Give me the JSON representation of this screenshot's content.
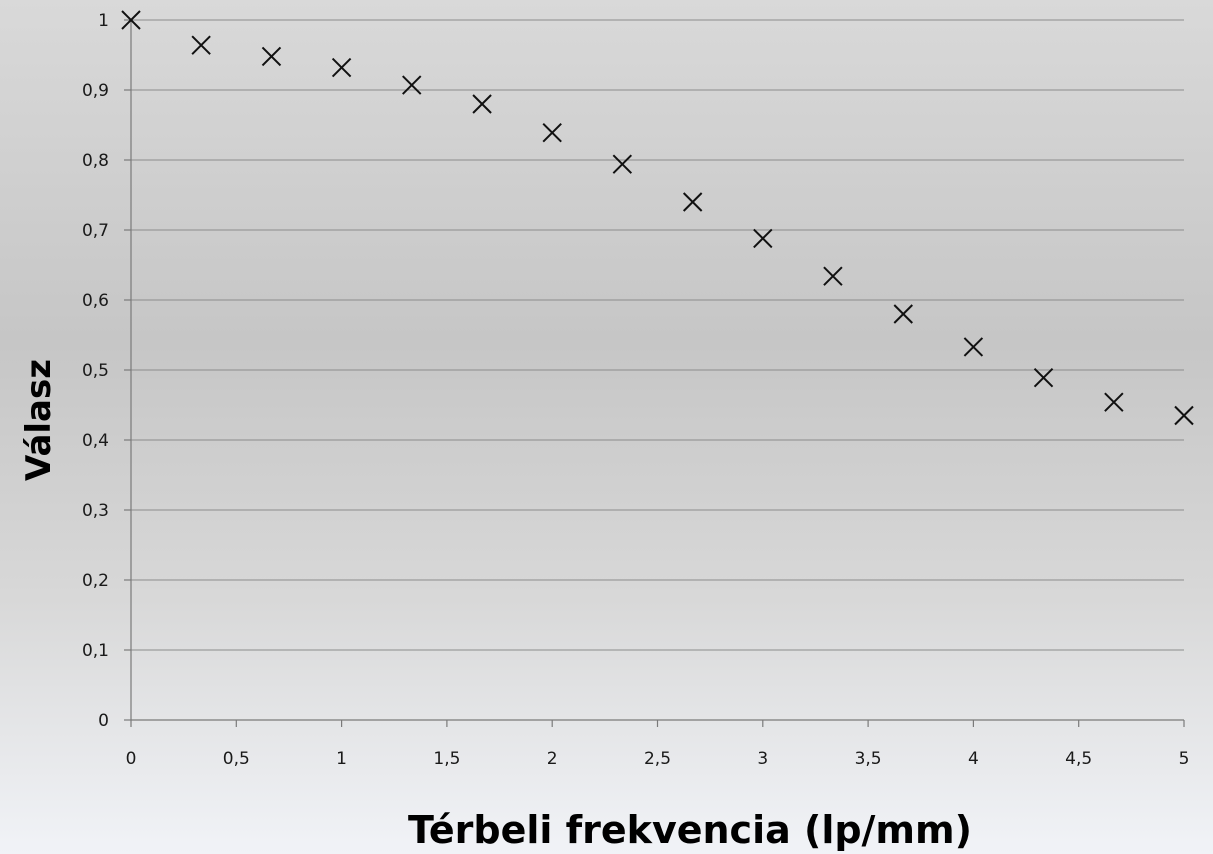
{
  "chart_data": {
    "type": "scatter",
    "marker": "x",
    "xlabel": "Térbeli frekvencia (lp/mm)",
    "ylabel": "Válasz",
    "xlim": [
      0,
      5
    ],
    "ylim": [
      0,
      1
    ],
    "grid": true,
    "x_ticks": [
      "0",
      "0,5",
      "1",
      "1,5",
      "2",
      "2,5",
      "3",
      "3,5",
      "4",
      "4,5",
      "5"
    ],
    "y_ticks": [
      "0",
      "0,1",
      "0,2",
      "0,3",
      "0,4",
      "0,5",
      "0,6",
      "0,7",
      "0,8",
      "0,9",
      "1"
    ],
    "series": [
      {
        "x": [
          0,
          0.333,
          0.667,
          1.0,
          1.333,
          1.667,
          2.0,
          2.333,
          2.667,
          3.0,
          3.333,
          3.667,
          4.0,
          4.333,
          4.667,
          5.0
        ],
        "y": [
          1.0,
          0.964,
          0.948,
          0.932,
          0.907,
          0.88,
          0.839,
          0.794,
          0.74,
          0.688,
          0.634,
          0.58,
          0.533,
          0.489,
          0.454,
          0.435
        ]
      }
    ]
  }
}
